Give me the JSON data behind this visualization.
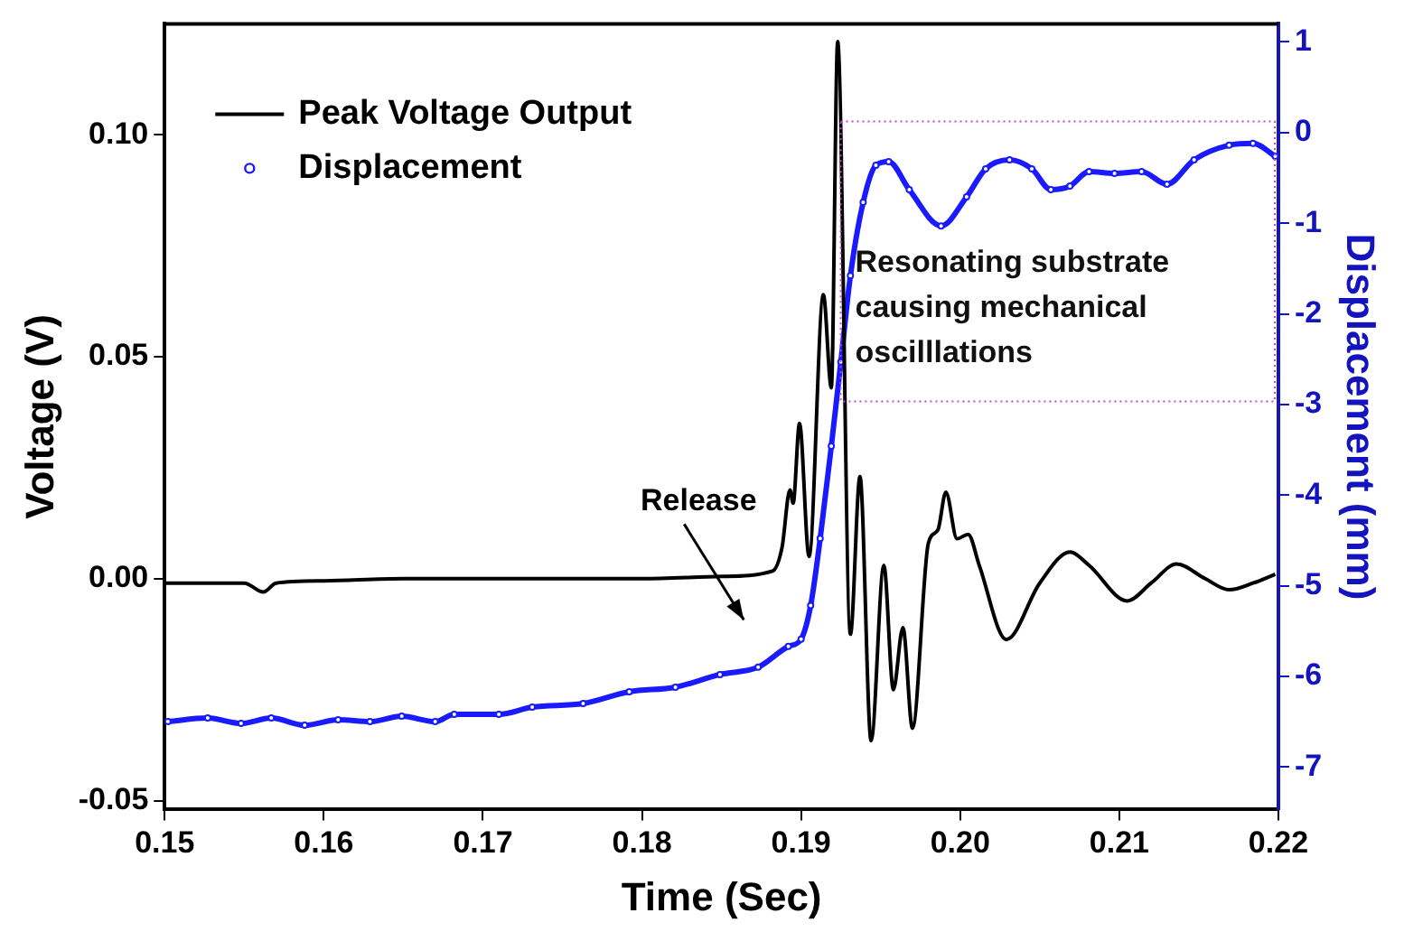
{
  "chart_data": {
    "type": "line",
    "xlabel": "Time (Sec)",
    "ylabel": "Voltage (V)",
    "y2label": "Displacement (mm)",
    "xlim": [
      0.15,
      0.22
    ],
    "xticks": [
      0.15,
      0.16,
      0.17,
      0.18,
      0.19,
      {
        "value": 0.2,
        "label": "0.20"
      },
      0.21,
      0.22
    ],
    "ylim": [
      -0.052,
      0.125
    ],
    "yticks": [
      -0.05,
      {
        "value": 0,
        "label": "0.00"
      },
      0.05,
      {
        "value": 0.1,
        "label": "0.10"
      }
    ],
    "y2lim": [
      -7.47,
      1.2
    ],
    "y2ticks": [
      -7,
      -6,
      -5,
      -4,
      -3,
      -2,
      -1,
      0,
      1
    ],
    "legend": "top left",
    "grid": false,
    "annotations": [
      "Release",
      "Resonating substrate causing mechanical oscilllations"
    ],
    "series": [
      {
        "name": "Peak Voltage Output",
        "marker": "none",
        "color": "#000000",
        "x": [
          0.15,
          0.155,
          0.1562,
          0.157,
          0.16,
          0.165,
          0.17,
          0.175,
          0.18,
          0.185,
          0.1882,
          0.1888,
          0.1893,
          0.1895,
          0.1899,
          0.1905,
          0.1914,
          0.1919,
          0.1923,
          0.1931,
          0.1937,
          0.1944,
          0.1952,
          0.1958,
          0.1964,
          0.197,
          0.198,
          0.1986,
          0.1991,
          0.1998,
          0.2005,
          0.2012,
          0.2029,
          0.205,
          0.2069,
          0.2081,
          0.2105,
          0.212,
          0.2136,
          0.2154,
          0.2169,
          0.2184,
          0.2198
        ],
        "values": [
          -0.001,
          -0.001,
          -0.003,
          -0.001,
          -0.0005,
          0,
          0,
          0,
          0,
          0.0005,
          0.0017,
          0.007,
          0.02,
          0.017,
          0.035,
          0.005,
          0.064,
          0.043,
          0.121,
          -0.0125,
          0.023,
          -0.0365,
          0.003,
          -0.025,
          -0.011,
          -0.0337,
          0.008,
          0.011,
          0.0195,
          0.009,
          0.01,
          0.003,
          -0.0137,
          -0.001,
          0.006,
          0.003,
          -0.005,
          -0.001,
          0.0033,
          0,
          -0.0025,
          -0.001,
          0.001
        ]
      },
      {
        "name": "Displacement",
        "axis": "y2",
        "marker": "circle",
        "color": "#1a1aff",
        "x": [
          0.1502,
          0.1527,
          0.1548,
          0.1567,
          0.1588,
          0.1609,
          0.1629,
          0.1649,
          0.167,
          0.1682,
          0.171,
          0.1731,
          0.1763,
          0.1792,
          0.1821,
          0.1849,
          0.1873,
          0.1892,
          0.19,
          0.1906,
          0.1912,
          0.1919,
          0.1925,
          0.1931,
          0.1939,
          0.1947,
          0.1955,
          0.1968,
          0.1988,
          0.2004,
          0.2016,
          0.2031,
          0.2045,
          0.2057,
          0.2069,
          0.2081,
          0.2097,
          0.2114,
          0.213,
          0.2147,
          0.2169,
          0.2184,
          0.2198
        ],
        "values": [
          -6.5,
          -6.46,
          -6.52,
          -6.46,
          -6.54,
          -6.48,
          -6.5,
          -6.44,
          -6.5,
          -6.42,
          -6.42,
          -6.34,
          -6.3,
          -6.17,
          -6.12,
          -5.98,
          -5.9,
          -5.67,
          -5.59,
          -5.22,
          -4.48,
          -3.46,
          -2.53,
          -1.58,
          -0.77,
          -0.36,
          -0.32,
          -0.63,
          -1.03,
          -0.71,
          -0.4,
          -0.3,
          -0.4,
          -0.63,
          -0.59,
          -0.43,
          -0.45,
          -0.43,
          -0.57,
          -0.3,
          -0.14,
          -0.12,
          -0.26
        ]
      }
    ]
  }
}
